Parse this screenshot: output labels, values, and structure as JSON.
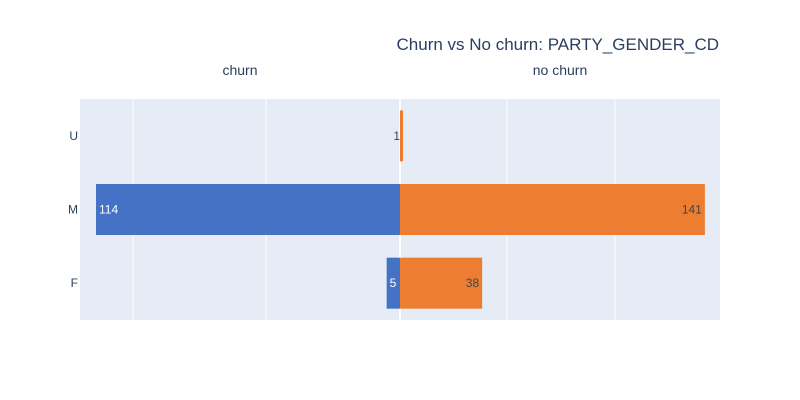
{
  "chart_data": {
    "type": "bar",
    "orientation": "horizontal",
    "title": "Churn vs No churn: PARTY_GENDER_CD",
    "categories": [
      "U",
      "M",
      "F"
    ],
    "panels": [
      {
        "subtitle": "churn",
        "direction": "left",
        "color": "#4472c4",
        "label_color": "#ffffff",
        "values": [
          0,
          114,
          5
        ],
        "labels": [
          "",
          "114",
          "5"
        ],
        "xlim": [
          0,
          120
        ]
      },
      {
        "subtitle": "no churn",
        "direction": "right",
        "color": "#ed7d31",
        "label_color": "#444444",
        "values": [
          1,
          141,
          38
        ],
        "labels": [
          "1",
          "141",
          "38"
        ],
        "xlim": [
          0,
          148
        ]
      }
    ],
    "grid": true,
    "legend": "none",
    "plot_background": "#e5ecf6"
  }
}
